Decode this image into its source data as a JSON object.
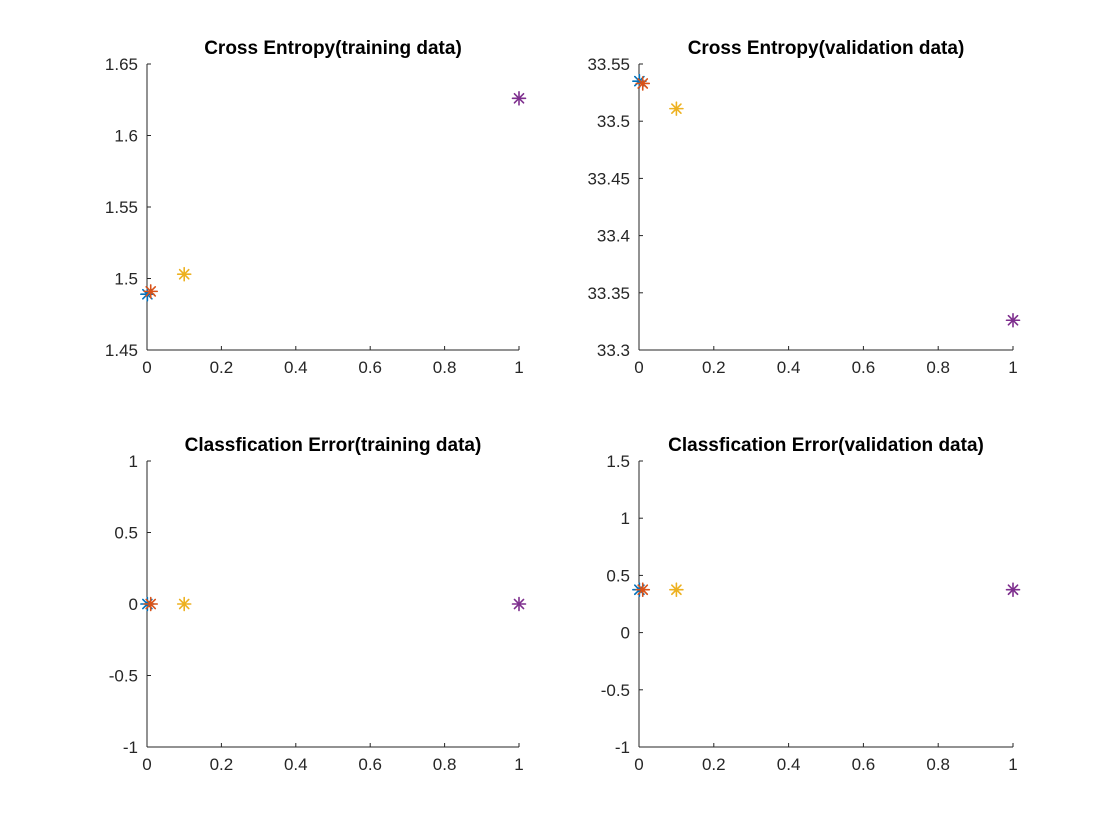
{
  "chart_data": [
    {
      "type": "scatter",
      "title": "Cross Entropy(training data)",
      "xlabel": "",
      "ylabel": "",
      "xlim": [
        0,
        1
      ],
      "ylim": [
        1.45,
        1.65
      ],
      "xticks": [
        "0",
        "0.2",
        "0.4",
        "0.6",
        "0.8",
        "1"
      ],
      "xtick_values": [
        0,
        0.2,
        0.4,
        0.6,
        0.8,
        1
      ],
      "yticks": [
        "1.45",
        "1.5",
        "1.55",
        "1.6",
        "1.65"
      ],
      "ytick_values": [
        1.45,
        1.5,
        1.55,
        1.6,
        1.65
      ],
      "grid": false,
      "marker": "asterisk",
      "points": [
        {
          "x": 0.001,
          "y": 1.489,
          "color": "#0072BD"
        },
        {
          "x": 0.01,
          "y": 1.491,
          "color": "#D95319"
        },
        {
          "x": 0.1,
          "y": 1.503,
          "color": "#EDB120"
        },
        {
          "x": 1,
          "y": 1.626,
          "color": "#7E2F8E"
        }
      ]
    },
    {
      "type": "scatter",
      "title": "Cross Entropy(validation data)",
      "xlabel": "",
      "ylabel": "",
      "xlim": [
        0,
        1
      ],
      "ylim": [
        33.3,
        33.55
      ],
      "xticks": [
        "0",
        "0.2",
        "0.4",
        "0.6",
        "0.8",
        "1"
      ],
      "xtick_values": [
        0,
        0.2,
        0.4,
        0.6,
        0.8,
        1
      ],
      "yticks": [
        "33.3",
        "33.35",
        "33.4",
        "33.45",
        "33.5",
        "33.55"
      ],
      "ytick_values": [
        33.3,
        33.35,
        33.4,
        33.45,
        33.5,
        33.55
      ],
      "grid": false,
      "marker": "asterisk",
      "points": [
        {
          "x": 0.001,
          "y": 33.535,
          "color": "#0072BD"
        },
        {
          "x": 0.01,
          "y": 33.533,
          "color": "#D95319"
        },
        {
          "x": 0.1,
          "y": 33.511,
          "color": "#EDB120"
        },
        {
          "x": 1,
          "y": 33.326,
          "color": "#7E2F8E"
        }
      ]
    },
    {
      "type": "scatter",
      "title": "Classfication Error(training data)",
      "xlabel": "",
      "ylabel": "",
      "xlim": [
        0,
        1
      ],
      "ylim": [
        -1,
        1
      ],
      "xticks": [
        "0",
        "0.2",
        "0.4",
        "0.6",
        "0.8",
        "1"
      ],
      "xtick_values": [
        0,
        0.2,
        0.4,
        0.6,
        0.8,
        1
      ],
      "yticks": [
        "-1",
        "-0.5",
        "0",
        "0.5",
        "1"
      ],
      "ytick_values": [
        -1,
        -0.5,
        0,
        0.5,
        1
      ],
      "grid": false,
      "marker": "asterisk",
      "points": [
        {
          "x": 0.001,
          "y": 0,
          "color": "#0072BD"
        },
        {
          "x": 0.01,
          "y": 0,
          "color": "#D95319"
        },
        {
          "x": 0.1,
          "y": 0,
          "color": "#EDB120"
        },
        {
          "x": 1,
          "y": 0,
          "color": "#7E2F8E"
        }
      ]
    },
    {
      "type": "scatter",
      "title": "Classfication Error(validation data)",
      "xlabel": "",
      "ylabel": "",
      "xlim": [
        0,
        1
      ],
      "ylim": [
        -1,
        1.5
      ],
      "xticks": [
        "0",
        "0.2",
        "0.4",
        "0.6",
        "0.8",
        "1"
      ],
      "xtick_values": [
        0,
        0.2,
        0.4,
        0.6,
        0.8,
        1
      ],
      "yticks": [
        "-1",
        "-0.5",
        "0",
        "0.5",
        "1",
        "1.5"
      ],
      "ytick_values": [
        -1,
        -0.5,
        0,
        0.5,
        1,
        1.5
      ],
      "grid": false,
      "marker": "asterisk",
      "points": [
        {
          "x": 0.001,
          "y": 0.375,
          "color": "#0072BD"
        },
        {
          "x": 0.01,
          "y": 0.375,
          "color": "#D95319"
        },
        {
          "x": 0.1,
          "y": 0.375,
          "color": "#EDB120"
        },
        {
          "x": 1,
          "y": 0.375,
          "color": "#7E2F8E"
        }
      ]
    }
  ]
}
